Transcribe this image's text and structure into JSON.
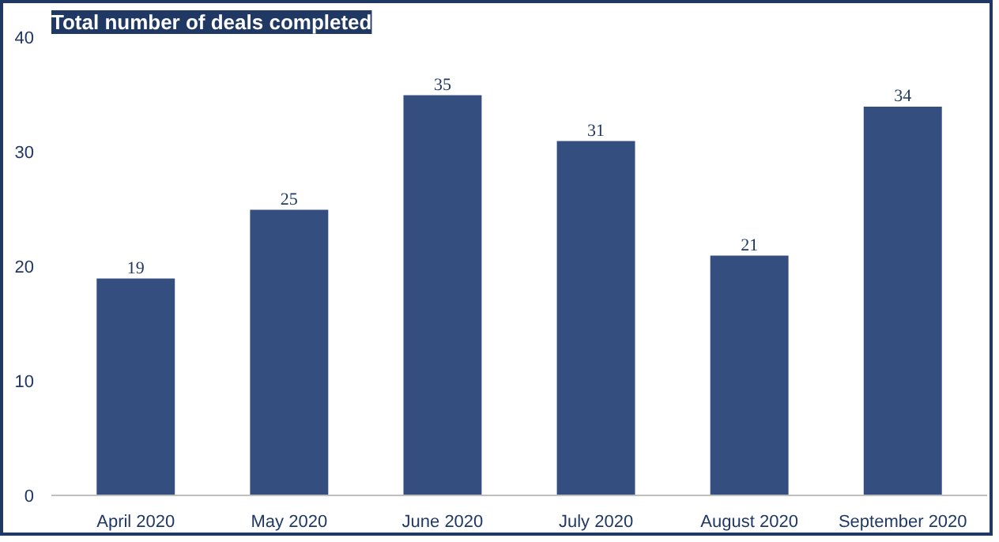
{
  "chart_data": {
    "type": "bar",
    "title": "Total number of deals completed",
    "categories": [
      "April 2020",
      "May 2020",
      "June 2020",
      "July 2020",
      "August 2020",
      "September 2020"
    ],
    "values": [
      19,
      25,
      35,
      31,
      21,
      34
    ],
    "color": "#344e7f",
    "ylim": [
      0,
      40
    ],
    "yticks": [
      0,
      10,
      20,
      30,
      40
    ],
    "grid": false,
    "data_labels": true
  }
}
